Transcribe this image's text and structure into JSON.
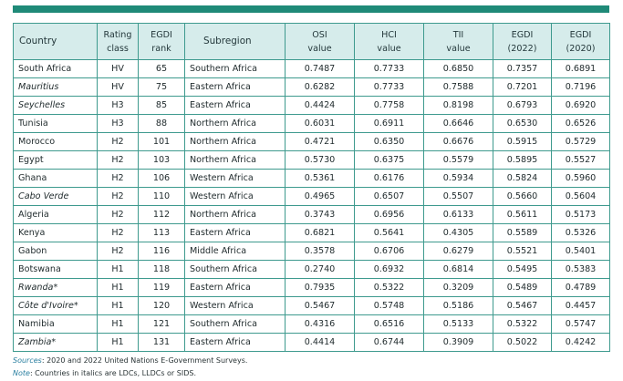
{
  "headers": {
    "country": "Country",
    "rating": [
      "Rating",
      "class"
    ],
    "rank": [
      "EGDI",
      "rank"
    ],
    "subregion": "Subregion",
    "osi": [
      "OSI",
      "value"
    ],
    "hci": [
      "HCI",
      "value"
    ],
    "tii": [
      "TII",
      "value"
    ],
    "egdi2022": [
      "EGDI",
      "(2022)"
    ],
    "egdi2020": [
      "EGDI",
      "(2020)"
    ]
  },
  "rows": [
    {
      "country": "South Africa",
      "italic": false,
      "rating": "HV",
      "rank": "65",
      "subregion": "Southern Africa",
      "osi": "0.7487",
      "hci": "0.7733",
      "tii": "0.6850",
      "egdi2022": "0.7357",
      "egdi2020": "0.6891"
    },
    {
      "country": "Mauritius",
      "italic": true,
      "rating": "HV",
      "rank": "75",
      "subregion": "Eastern Africa",
      "osi": "0.6282",
      "hci": "0.7733",
      "tii": "0.7588",
      "egdi2022": "0.7201",
      "egdi2020": "0.7196"
    },
    {
      "country": "Seychelles",
      "italic": true,
      "rating": "H3",
      "rank": "85",
      "subregion": "Eastern Africa",
      "osi": "0.4424",
      "hci": "0.7758",
      "tii": "0.8198",
      "egdi2022": "0.6793",
      "egdi2020": "0.6920"
    },
    {
      "country": "Tunisia",
      "italic": false,
      "rating": "H3",
      "rank": "88",
      "subregion": "Northern Africa",
      "osi": "0.6031",
      "hci": "0.6911",
      "tii": "0.6646",
      "egdi2022": "0.6530",
      "egdi2020": "0.6526"
    },
    {
      "country": "Morocco",
      "italic": false,
      "rating": "H2",
      "rank": "101",
      "subregion": "Northern Africa",
      "osi": "0.4721",
      "hci": "0.6350",
      "tii": "0.6676",
      "egdi2022": "0.5915",
      "egdi2020": "0.5729"
    },
    {
      "country": "Egypt",
      "italic": false,
      "rating": "H2",
      "rank": "103",
      "subregion": "Northern Africa",
      "osi": "0.5730",
      "hci": "0.6375",
      "tii": "0.5579",
      "egdi2022": "0.5895",
      "egdi2020": "0.5527"
    },
    {
      "country": "Ghana",
      "italic": false,
      "rating": "H2",
      "rank": "106",
      "subregion": "Western Africa",
      "osi": "0.5361",
      "hci": "0.6176",
      "tii": "0.5934",
      "egdi2022": "0.5824",
      "egdi2020": "0.5960"
    },
    {
      "country": "Cabo Verde",
      "italic": true,
      "rating": "H2",
      "rank": "110",
      "subregion": "Western Africa",
      "osi": "0.4965",
      "hci": "0.6507",
      "tii": "0.5507",
      "egdi2022": "0.5660",
      "egdi2020": "0.5604"
    },
    {
      "country": "Algeria",
      "italic": false,
      "rating": "H2",
      "rank": "112",
      "subregion": "Northern Africa",
      "osi": "0.3743",
      "hci": "0.6956",
      "tii": "0.6133",
      "egdi2022": "0.5611",
      "egdi2020": "0.5173"
    },
    {
      "country": "Kenya",
      "italic": false,
      "rating": "H2",
      "rank": "113",
      "subregion": "Eastern Africa",
      "osi": "0.6821",
      "hci": "0.5641",
      "tii": "0.4305",
      "egdi2022": "0.5589",
      "egdi2020": "0.5326"
    },
    {
      "country": "Gabon",
      "italic": false,
      "rating": "H2",
      "rank": "116",
      "subregion": "Middle Africa",
      "osi": "0.3578",
      "hci": "0.6706",
      "tii": "0.6279",
      "egdi2022": "0.5521",
      "egdi2020": "0.5401"
    },
    {
      "country": "Botswana",
      "italic": false,
      "rating": "H1",
      "rank": "118",
      "subregion": "Southern Africa",
      "osi": "0.2740",
      "hci": "0.6932",
      "tii": "0.6814",
      "egdi2022": "0.5495",
      "egdi2020": "0.5383"
    },
    {
      "country": "Rwanda*",
      "italic": true,
      "rating": "H1",
      "rank": "119",
      "subregion": "Eastern Africa",
      "osi": "0.7935",
      "hci": "0.5322",
      "tii": "0.3209",
      "egdi2022": "0.5489",
      "egdi2020": "0.4789"
    },
    {
      "country": "Côte d'Ivoire*",
      "italic": true,
      "rating": "H1",
      "rank": "120",
      "subregion": "Western Africa",
      "osi": "0.5467",
      "hci": "0.5748",
      "tii": "0.5186",
      "egdi2022": "0.5467",
      "egdi2020": "0.4457"
    },
    {
      "country": "Namibia",
      "italic": false,
      "rating": "H1",
      "rank": "121",
      "subregion": "Southern Africa",
      "osi": "0.4316",
      "hci": "0.6516",
      "tii": "0.5133",
      "egdi2022": "0.5322",
      "egdi2020": "0.5747"
    },
    {
      "country": "Zambia*",
      "italic": true,
      "rating": "H1",
      "rank": "131",
      "subregion": "Eastern Africa",
      "osi": "0.4414",
      "hci": "0.6744",
      "tii": "0.3909",
      "egdi2022": "0.5022",
      "egdi2020": "0.4242"
    }
  ],
  "notes": {
    "sources_label": "Sources",
    "sources_text": ": 2020 and 2022 United Nations E-Government Surveys.",
    "note_label": "Note",
    "note_text": ": Countries in italics are LDCs, LLDCs or SIDS."
  },
  "colors": {
    "accent": "#1f8a78",
    "header_bg": "#d6eceb",
    "border": "#3e9a8e"
  }
}
